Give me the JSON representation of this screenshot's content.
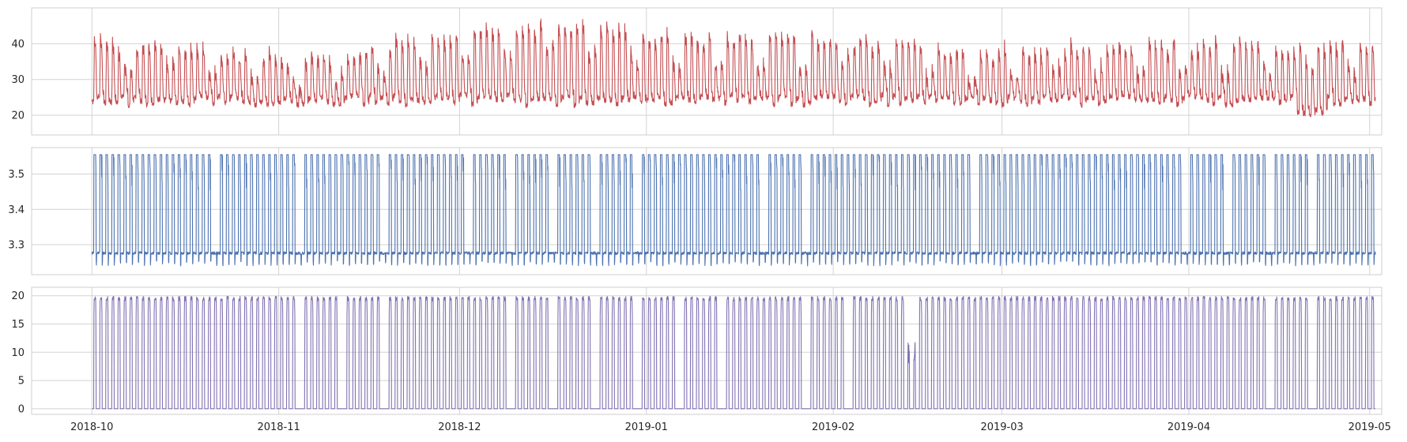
{
  "chart_data": [
    {
      "type": "line",
      "color": "#c44e52",
      "ylim": [
        14.5,
        50
      ],
      "yticks": [
        "20",
        "30",
        "40"
      ],
      "yticks_values": [
        20,
        30,
        40
      ],
      "grid": true,
      "daily_profile": {
        "night_min": [
          20,
          26
        ],
        "day_peak": [
          31,
          47
        ]
      },
      "weekly_peaks": [
        {
          "week_of": "2018-10-01",
          "peak": 41
        },
        {
          "week_of": "2018-10-15",
          "peak": 40
        },
        {
          "week_of": "2018-11-05",
          "peak": 36
        },
        {
          "week_of": "2018-11-19",
          "peak": 41
        },
        {
          "week_of": "2018-12-03",
          "peak": 43
        },
        {
          "week_of": "2018-12-17",
          "peak": 47
        },
        {
          "week_of": "2019-01-07",
          "peak": 42
        },
        {
          "week_of": "2019-01-21",
          "peak": 43
        },
        {
          "week_of": "2019-02-04",
          "peak": 42
        },
        {
          "week_of": "2019-02-25",
          "peak": 38
        },
        {
          "week_of": "2019-03-18",
          "peak": 40
        },
        {
          "week_of": "2019-04-08",
          "peak": 41
        },
        {
          "week_of": "2019-04-22",
          "peak": 40
        }
      ]
    },
    {
      "type": "line",
      "color": "#4c72b0",
      "ylim": [
        3.215,
        3.575
      ],
      "yticks": [
        "3.3",
        "3.4",
        "3.5"
      ],
      "yticks_values": [
        3.3,
        3.4,
        3.5
      ],
      "grid": true,
      "levels": {
        "off": 3.28,
        "on": 3.555,
        "dip_min": 3.24
      }
    },
    {
      "type": "line",
      "color": "#8172b2",
      "ylim": [
        -1,
        21.5
      ],
      "yticks": [
        "0",
        "5",
        "10",
        "15",
        "20"
      ],
      "yticks_values": [
        0,
        5,
        10,
        15,
        20
      ],
      "grid": true,
      "levels": {
        "off": 0,
        "on": 19.5,
        "shoulder": 16.5
      },
      "gaps": [
        {
          "from": "2019-02-13",
          "to": "2019-02-15"
        }
      ]
    }
  ],
  "x_axis": {
    "start": "2018-10-01",
    "end": "2019-05-02",
    "range": [
      "2018-09-21",
      "2019-05-03"
    ],
    "ticks": [
      {
        "date": "2018-10-01",
        "label": "2018-10"
      },
      {
        "date": "2018-11-01",
        "label": "2018-11"
      },
      {
        "date": "2018-12-01",
        "label": "2018-12"
      },
      {
        "date": "2019-01-01",
        "label": "2019-01"
      },
      {
        "date": "2019-02-01",
        "label": "2019-02"
      },
      {
        "date": "2019-03-01",
        "label": "2019-03"
      },
      {
        "date": "2019-04-01",
        "label": "2019-04"
      },
      {
        "date": "2019-05-01",
        "label": "2019-05"
      }
    ]
  }
}
